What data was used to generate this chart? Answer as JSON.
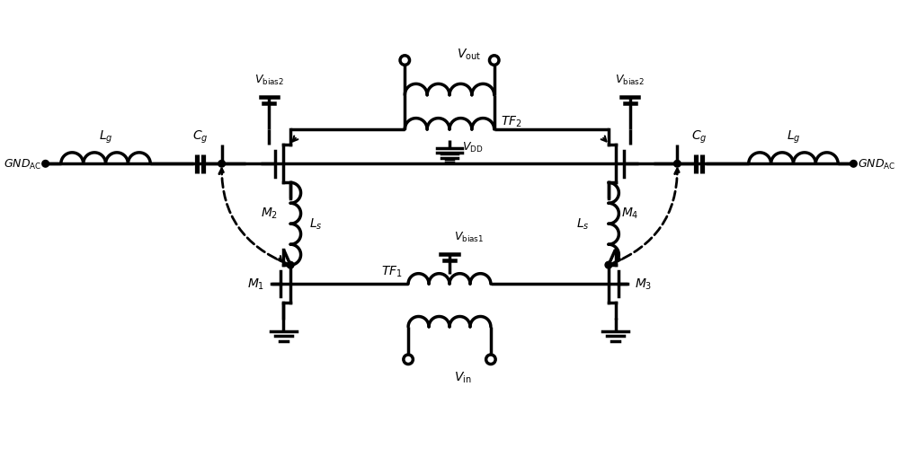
{
  "bg_color": "#ffffff",
  "line_color": "#000000",
  "line_width": 2.5,
  "fig_width": 10.0,
  "fig_height": 5.1,
  "dpi": 100
}
